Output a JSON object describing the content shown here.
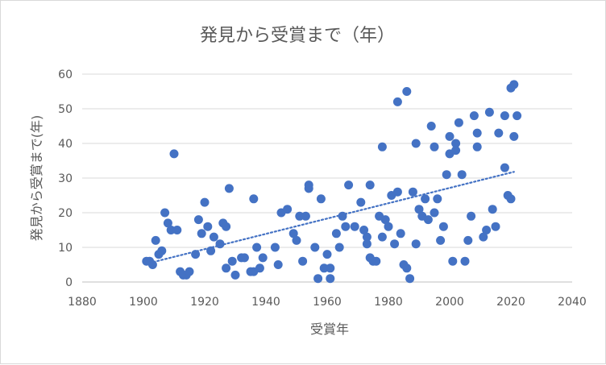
{
  "chart_data": {
    "type": "scatter",
    "title": "発見から受賞まで（年）",
    "xlabel": "受賞年",
    "ylabel": "発見から受賞まで(年)",
    "xlim": [
      1880,
      2040
    ],
    "ylim": [
      0,
      60
    ],
    "xticks": [
      1880,
      1900,
      1920,
      1940,
      1960,
      1980,
      2000,
      2020,
      2040
    ],
    "yticks": [
      0,
      10,
      20,
      30,
      40,
      50,
      60
    ],
    "grid": "horizontal",
    "colors": {
      "points": "#4472c4",
      "trendline": "#4472c4",
      "grid": "#d9d9d9",
      "text": "#595959"
    },
    "trendline": {
      "style": "dotted",
      "x": [
        1902,
        2021
      ],
      "y": [
        5.5,
        31.8
      ]
    },
    "points": [
      [
        1901,
        6
      ],
      [
        1902,
        6
      ],
      [
        1903,
        5
      ],
      [
        1904,
        12
      ],
      [
        1905,
        8
      ],
      [
        1906,
        9
      ],
      [
        1907,
        20
      ],
      [
        1908,
        17
      ],
      [
        1909,
        15
      ],
      [
        1910,
        37
      ],
      [
        1911,
        15
      ],
      [
        1912,
        3
      ],
      [
        1913,
        2
      ],
      [
        1914,
        2
      ],
      [
        1915,
        3
      ],
      [
        1917,
        8
      ],
      [
        1918,
        18
      ],
      [
        1919,
        14
      ],
      [
        1920,
        23
      ],
      [
        1921,
        16
      ],
      [
        1922,
        9
      ],
      [
        1923,
        13
      ],
      [
        1925,
        11
      ],
      [
        1926,
        17
      ],
      [
        1927,
        16
      ],
      [
        1927,
        4
      ],
      [
        1928,
        27
      ],
      [
        1929,
        6
      ],
      [
        1930,
        2
      ],
      [
        1932,
        7
      ],
      [
        1933,
        7
      ],
      [
        1935,
        3
      ],
      [
        1936,
        24
      ],
      [
        1936,
        3
      ],
      [
        1937,
        10
      ],
      [
        1938,
        4
      ],
      [
        1939,
        7
      ],
      [
        1943,
        10
      ],
      [
        1944,
        5
      ],
      [
        1945,
        20
      ],
      [
        1947,
        21
      ],
      [
        1949,
        14
      ],
      [
        1950,
        12
      ],
      [
        1951,
        19
      ],
      [
        1952,
        6
      ],
      [
        1953,
        19
      ],
      [
        1954,
        28
      ],
      [
        1954,
        27
      ],
      [
        1956,
        10
      ],
      [
        1957,
        1
      ],
      [
        1958,
        24
      ],
      [
        1959,
        4
      ],
      [
        1960,
        8
      ],
      [
        1961,
        4
      ],
      [
        1961,
        1
      ],
      [
        1963,
        14
      ],
      [
        1964,
        10
      ],
      [
        1965,
        19
      ],
      [
        1966,
        16
      ],
      [
        1967,
        28
      ],
      [
        1969,
        16
      ],
      [
        1971,
        23
      ],
      [
        1972,
        15
      ],
      [
        1973,
        11
      ],
      [
        1973,
        13
      ],
      [
        1974,
        28
      ],
      [
        1974,
        7
      ],
      [
        1975,
        6
      ],
      [
        1976,
        6
      ],
      [
        1977,
        19
      ],
      [
        1978,
        39
      ],
      [
        1978,
        13
      ],
      [
        1979,
        18
      ],
      [
        1980,
        16
      ],
      [
        1981,
        25
      ],
      [
        1982,
        11
      ],
      [
        1983,
        52
      ],
      [
        1983,
        26
      ],
      [
        1984,
        14
      ],
      [
        1985,
        5
      ],
      [
        1986,
        55
      ],
      [
        1986,
        4
      ],
      [
        1987,
        1
      ],
      [
        1988,
        26
      ],
      [
        1989,
        40
      ],
      [
        1989,
        11
      ],
      [
        1990,
        21
      ],
      [
        1991,
        19
      ],
      [
        1992,
        24
      ],
      [
        1993,
        18
      ],
      [
        1994,
        45
      ],
      [
        1995,
        39
      ],
      [
        1995,
        20
      ],
      [
        1996,
        24
      ],
      [
        1997,
        12
      ],
      [
        1998,
        16
      ],
      [
        1999,
        31
      ],
      [
        2000,
        42
      ],
      [
        2000,
        37
      ],
      [
        2001,
        6
      ],
      [
        2002,
        40
      ],
      [
        2002,
        38
      ],
      [
        2003,
        46
      ],
      [
        2004,
        31
      ],
      [
        2005,
        6
      ],
      [
        2006,
        12
      ],
      [
        2007,
        19
      ],
      [
        2008,
        48
      ],
      [
        2009,
        43
      ],
      [
        2009,
        39
      ],
      [
        2011,
        13
      ],
      [
        2012,
        15
      ],
      [
        2013,
        49
      ],
      [
        2014,
        21
      ],
      [
        2015,
        16
      ],
      [
        2016,
        43
      ],
      [
        2018,
        48
      ],
      [
        2018,
        33
      ],
      [
        2019,
        25
      ],
      [
        2020,
        56
      ],
      [
        2020,
        24
      ],
      [
        2021,
        57
      ],
      [
        2021,
        42
      ],
      [
        2022,
        48
      ]
    ]
  }
}
